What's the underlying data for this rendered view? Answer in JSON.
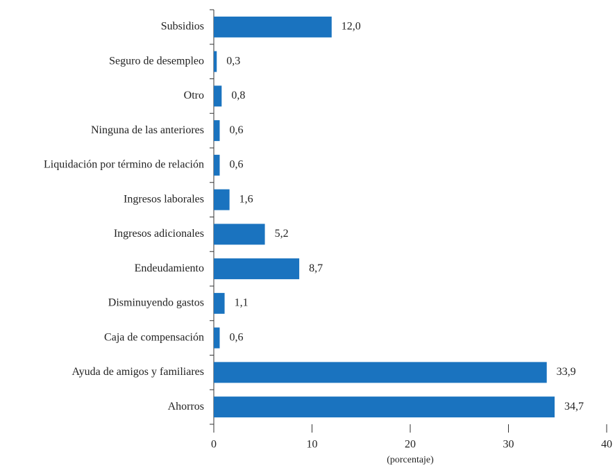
{
  "chart_data": {
    "type": "bar",
    "orientation": "horizontal",
    "categories": [
      "Subsidios",
      "Seguro de desempleo",
      "Otro",
      "Ninguna de las anteriores",
      "Liquidación por término de relación",
      "Ingresos laborales",
      "Ingresos adicionales",
      "Endeudamiento",
      "Disminuyendo gastos",
      "Caja de compensación",
      "Ayuda de amigos y familiares",
      "Ahorros"
    ],
    "values": [
      12.0,
      0.3,
      0.8,
      0.6,
      0.6,
      1.6,
      5.2,
      8.7,
      1.1,
      0.6,
      33.9,
      34.7
    ],
    "value_labels": [
      "12,0",
      "0,3",
      "0,8",
      "0,6",
      "0,6",
      "1,6",
      "5,2",
      "8,7",
      "1,1",
      "0,6",
      "33,9",
      "34,7"
    ],
    "color": "#1a73bf",
    "xlim": [
      0,
      40
    ],
    "xticks": [
      0,
      10,
      20,
      30,
      40
    ],
    "x_label": "(porcentaje)"
  }
}
